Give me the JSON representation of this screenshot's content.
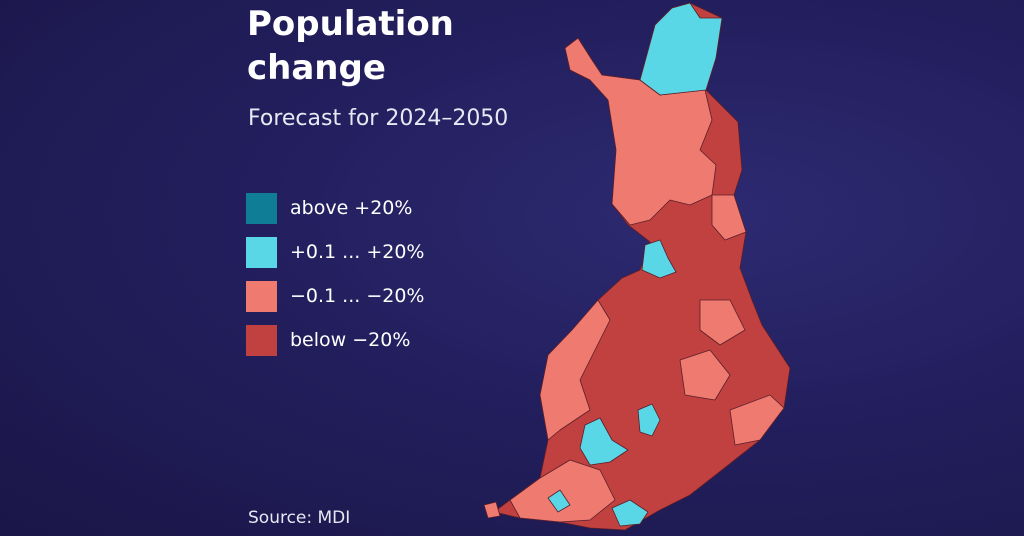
{
  "header": {
    "title": "Population change",
    "subtitle": "Forecast for 2024–2050"
  },
  "legend": [
    {
      "label": "above +20%",
      "color": "#0f7d96"
    },
    {
      "label": "+0.1 ... +20%",
      "color": "#5ad7e6"
    },
    {
      "label": "−0.1 ... −20%",
      "color": "#ee7a70"
    },
    {
      "label": "below −20%",
      "color": "#c0413f"
    }
  ],
  "source": "Source: MDI"
}
